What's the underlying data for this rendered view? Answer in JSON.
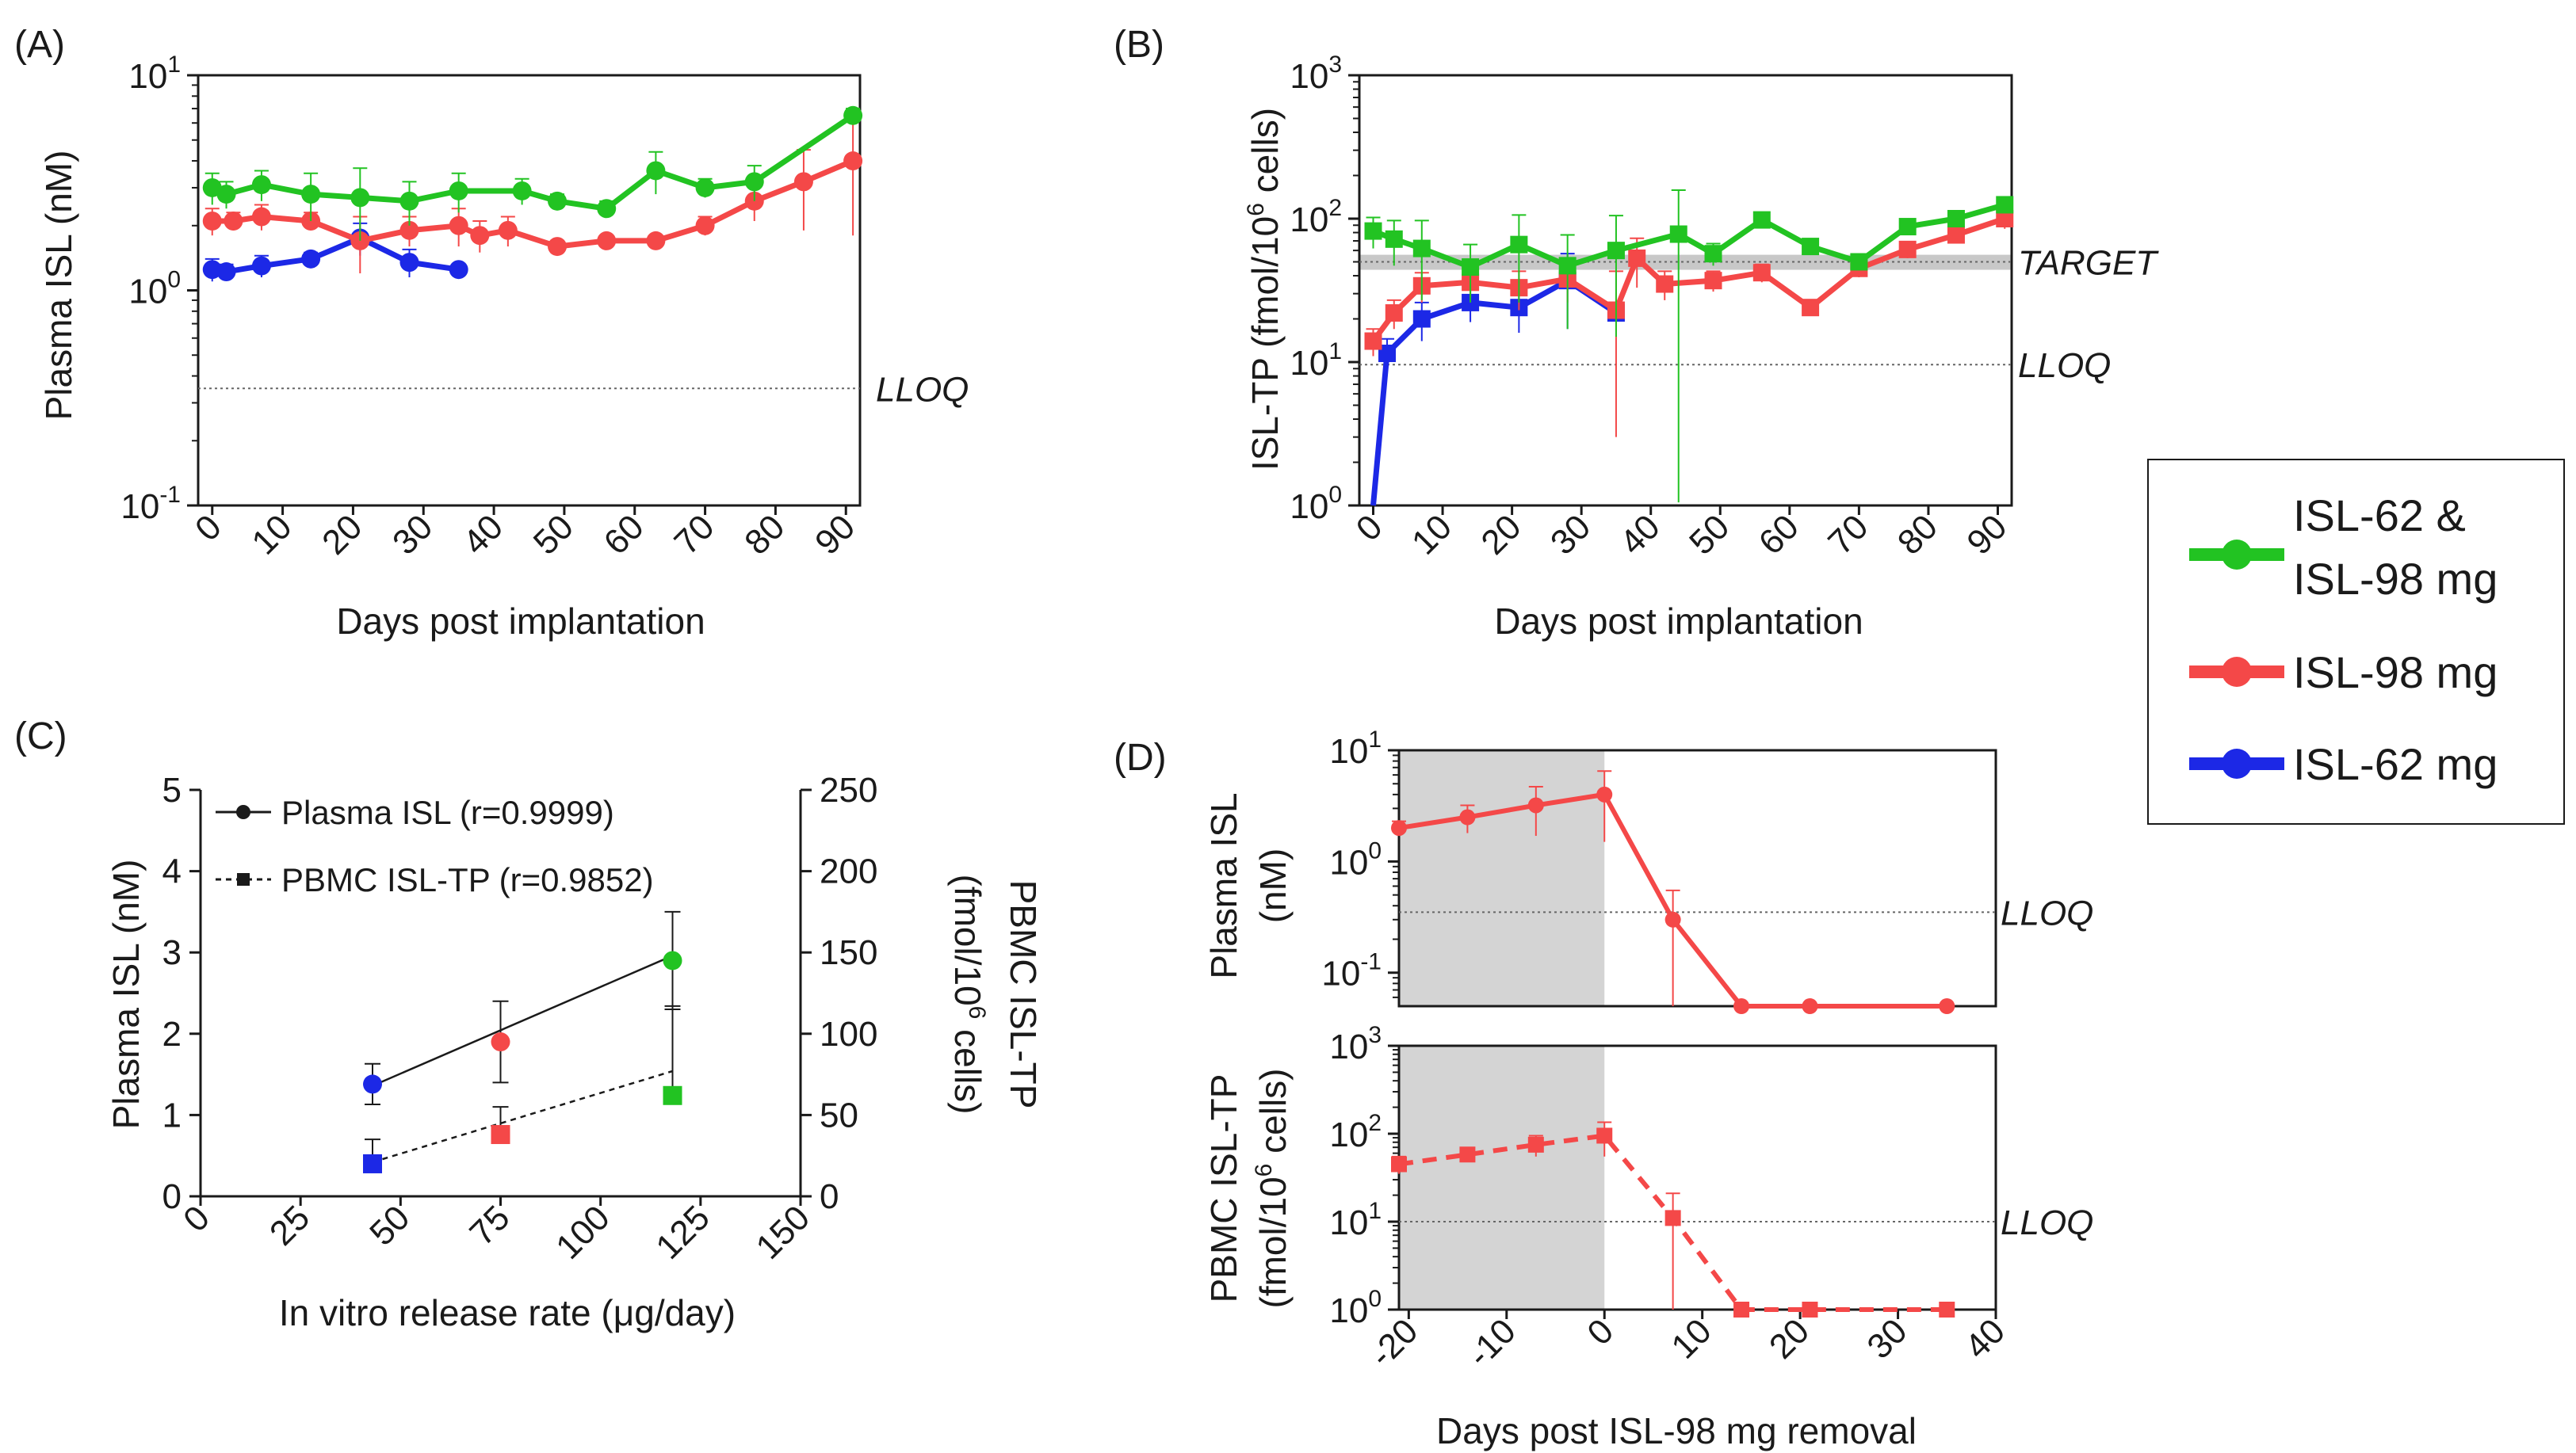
{
  "legend": {
    "entries": [
      {
        "line1": "ISL-62 &",
        "line2": "ISL-98 mg",
        "color": "#22c322"
      },
      {
        "line1": "ISL-98 mg",
        "line2": "",
        "color": "#f44848"
      },
      {
        "line1": "ISL-62 mg",
        "line2": "",
        "color": "#1c28e6"
      }
    ]
  },
  "chart_data": [
    {
      "panel": "(A)",
      "type": "line",
      "scale": "log",
      "ylabel": "Plasma ISL (nM)",
      "xlabel": "Days post implantation",
      "xlim": [
        -2,
        92
      ],
      "ylim": [
        0.1,
        10
      ],
      "x_ticks": [
        0,
        10,
        20,
        30,
        40,
        50,
        60,
        70,
        80,
        90
      ],
      "y_ticks": [
        {
          "v": 0.1,
          "base": "10",
          "exp": "-1"
        },
        {
          "v": 1,
          "base": "10",
          "exp": "0"
        },
        {
          "v": 10,
          "base": "10",
          "exp": "1"
        }
      ],
      "reference_lines": [
        {
          "label": "LLOQ",
          "y": 0.35
        }
      ],
      "series": [
        {
          "name": "ISL-62 & ISL-98 mg",
          "color": "#22c322",
          "marker": "circle",
          "x": [
            0,
            2,
            7,
            14,
            21,
            28,
            35,
            44,
            49,
            56,
            63,
            70,
            77,
            91
          ],
          "y": [
            3.0,
            2.8,
            3.1,
            2.8,
            2.7,
            2.6,
            2.9,
            2.9,
            2.6,
            2.4,
            3.6,
            3.0,
            3.2,
            6.5
          ],
          "err": [
            0.5,
            0.4,
            0.5,
            0.7,
            1.0,
            0.6,
            0.6,
            0.4,
            0.2,
            0.2,
            0.8,
            0.3,
            0.6,
            0.5
          ]
        },
        {
          "name": "ISL-98 mg",
          "color": "#f44848",
          "marker": "circle",
          "x": [
            0,
            3,
            7,
            14,
            21,
            28,
            35,
            38,
            42,
            49,
            56,
            63,
            70,
            77,
            84,
            91
          ],
          "y": [
            2.1,
            2.1,
            2.2,
            2.1,
            1.7,
            1.9,
            2.0,
            1.8,
            1.9,
            1.6,
            1.7,
            1.7,
            2.0,
            2.6,
            3.2,
            4.0
          ],
          "err": [
            0.3,
            0.2,
            0.3,
            0.2,
            0.5,
            0.3,
            0.4,
            0.3,
            0.3,
            0.1,
            0.1,
            0.1,
            0.2,
            0.5,
            1.3,
            2.2
          ]
        },
        {
          "name": "ISL-62 mg",
          "color": "#1c28e6",
          "marker": "circle",
          "x": [
            0,
            2,
            7,
            14,
            21,
            28,
            35
          ],
          "y": [
            1.25,
            1.22,
            1.3,
            1.4,
            1.75,
            1.35,
            1.25
          ],
          "err": [
            0.15,
            0.1,
            0.15,
            0.1,
            0.3,
            0.2,
            0.0
          ]
        }
      ]
    },
    {
      "panel": "(B)",
      "type": "line",
      "scale": "log",
      "ylabel": "ISL-TP (fmol/10",
      "ylabel_sup": "6",
      "ylabel_end": " cells)",
      "xlabel": "Days post implantation",
      "xlim": [
        -2,
        92
      ],
      "ylim": [
        1,
        1000
      ],
      "x_ticks": [
        0,
        10,
        20,
        30,
        40,
        50,
        60,
        70,
        80,
        90
      ],
      "y_ticks": [
        {
          "v": 1,
          "base": "10",
          "exp": "0"
        },
        {
          "v": 10,
          "base": "10",
          "exp": "1"
        },
        {
          "v": 100,
          "base": "10",
          "exp": "2"
        },
        {
          "v": 1000,
          "base": "10",
          "exp": "3"
        }
      ],
      "reference_lines": [
        {
          "label": "TARGET",
          "y": 50
        },
        {
          "label": "LLOQ",
          "y": 9.6
        }
      ],
      "target_band": [
        44,
        56
      ],
      "series": [
        {
          "name": "ISL-62 & ISL-98 mg",
          "color": "#22c322",
          "marker": "square",
          "x": [
            0,
            3,
            7,
            14,
            21,
            28,
            35,
            44,
            49,
            56,
            63,
            70,
            77,
            84,
            91
          ],
          "y": [
            82,
            72,
            62,
            46,
            66,
            47,
            60,
            78,
            57,
            98,
            64,
            50,
            88,
            100,
            125
          ],
          "err": [
            20,
            25,
            35,
            20,
            40,
            30,
            45,
            80,
            10,
            10,
            5,
            5,
            10,
            10,
            15
          ]
        },
        {
          "name": "ISL-98 mg",
          "color": "#f44848",
          "marker": "square",
          "x": [
            0,
            3,
            7,
            14,
            21,
            28,
            35,
            38,
            42,
            49,
            56,
            63,
            70,
            77,
            84,
            91
          ],
          "y": [
            14,
            22,
            34,
            36,
            33,
            38,
            23,
            53,
            35,
            37,
            42,
            24,
            45,
            61,
            77,
            100
          ],
          "err": [
            3,
            5,
            8,
            8,
            10,
            12,
            20,
            20,
            8,
            6,
            6,
            2,
            6,
            8,
            10,
            15
          ]
        },
        {
          "name": "ISL-62 mg",
          "color": "#1c28e6",
          "marker": "square",
          "x": [
            0,
            2,
            7,
            14,
            21,
            28,
            35
          ],
          "y": [
            1,
            11.5,
            20,
            26,
            24,
            37,
            22
          ],
          "err": [
            0,
            3,
            6,
            7,
            8,
            20,
            3
          ]
        }
      ]
    },
    {
      "panel": "(C)",
      "type": "scatter",
      "ylabel": "Plasma ISL (nM)",
      "y2label_line1": "PBMC ISL-TP",
      "y2label_line2": "(fmol/10",
      "y2label_sup": "6",
      "y2label_end": " cells)",
      "xlabel": "In vitro release rate (μg/day)",
      "xlim": [
        0,
        150
      ],
      "ylim": [
        0,
        5
      ],
      "y2lim": [
        0,
        250
      ],
      "x_ticks": [
        0,
        25,
        50,
        75,
        100,
        125,
        150
      ],
      "y_ticks": [
        0,
        1,
        2,
        3,
        4,
        5
      ],
      "y2_ticks": [
        0,
        50,
        100,
        150,
        200,
        250
      ],
      "legend": [
        {
          "label": "Plasma ISL (r=0.9999)",
          "marker": "circle",
          "dash": false
        },
        {
          "label": "PBMC ISL-TP (r=0.9852)",
          "marker": "square",
          "dash": true
        }
      ],
      "plasma": {
        "x": [
          43,
          75,
          118
        ],
        "y": [
          1.38,
          1.9,
          2.9
        ],
        "err": [
          0.25,
          0.5,
          0.6
        ],
        "colors": [
          "#1c28e6",
          "#f44848",
          "#22c322"
        ]
      },
      "pbmc": {
        "x": [
          43,
          75,
          118
        ],
        "y": [
          20,
          38,
          62
        ],
        "err": [
          15,
          17,
          55
        ],
        "colors": [
          "#1c28e6",
          "#f44848",
          "#22c322"
        ]
      },
      "fit_plasma": {
        "x": [
          43,
          118
        ],
        "y": [
          1.36,
          2.96
        ]
      },
      "fit_pbmc": {
        "x": [
          43,
          118
        ],
        "y": [
          21,
          77
        ]
      }
    },
    {
      "panel": "(D)",
      "type": "line",
      "scale": "log",
      "xlabel": "Days post ISL-98 mg removal",
      "xlim": [
        -21,
        40
      ],
      "x_ticks": [
        -20,
        -10,
        0,
        10,
        20,
        30,
        40
      ],
      "shaded_x": [
        -21,
        0
      ],
      "top": {
        "ylabel_line1": "Plasma ISL",
        "ylabel_line2": "(nM)",
        "ylim": [
          0.05,
          10
        ],
        "y_ticks": [
          {
            "v": 0.1,
            "base": "10",
            "exp": "-1"
          },
          {
            "v": 1,
            "base": "10",
            "exp": "0"
          },
          {
            "v": 10,
            "base": "10",
            "exp": "1"
          }
        ],
        "reference_lines": [
          {
            "label": "LLOQ",
            "y": 0.35
          }
        ],
        "series": {
          "color": "#f44848",
          "marker": "circle",
          "dash": false,
          "x": [
            -21,
            -14,
            -7,
            0,
            7,
            14,
            21,
            35
          ],
          "y": [
            2.0,
            2.5,
            3.2,
            4.0,
            0.3,
            0.05,
            0.05,
            0.05
          ],
          "err": [
            0.3,
            0.7,
            1.5,
            2.5,
            0.25,
            0,
            0,
            0
          ]
        }
      },
      "bottom": {
        "ylabel_line1": "PBMC ISL-TP",
        "ylabel_line2": "(fmol/10",
        "ylabel_sup": "6",
        "ylabel_end": " cells)",
        "ylim": [
          1,
          1000
        ],
        "y_ticks": [
          {
            "v": 1,
            "base": "10",
            "exp": "0"
          },
          {
            "v": 10,
            "base": "10",
            "exp": "1"
          },
          {
            "v": 100,
            "base": "10",
            "exp": "2"
          },
          {
            "v": 1000,
            "base": "10",
            "exp": "3"
          }
        ],
        "reference_lines": [
          {
            "label": "LLOQ",
            "y": 10
          }
        ],
        "series": {
          "color": "#f44848",
          "marker": "square",
          "dash": true,
          "x": [
            -21,
            -14,
            -7,
            0,
            7,
            14,
            21,
            35
          ],
          "y": [
            45,
            58,
            75,
            95,
            11,
            1,
            1,
            1
          ],
          "err": [
            10,
            8,
            20,
            40,
            10,
            0,
            0,
            0
          ]
        }
      }
    }
  ]
}
